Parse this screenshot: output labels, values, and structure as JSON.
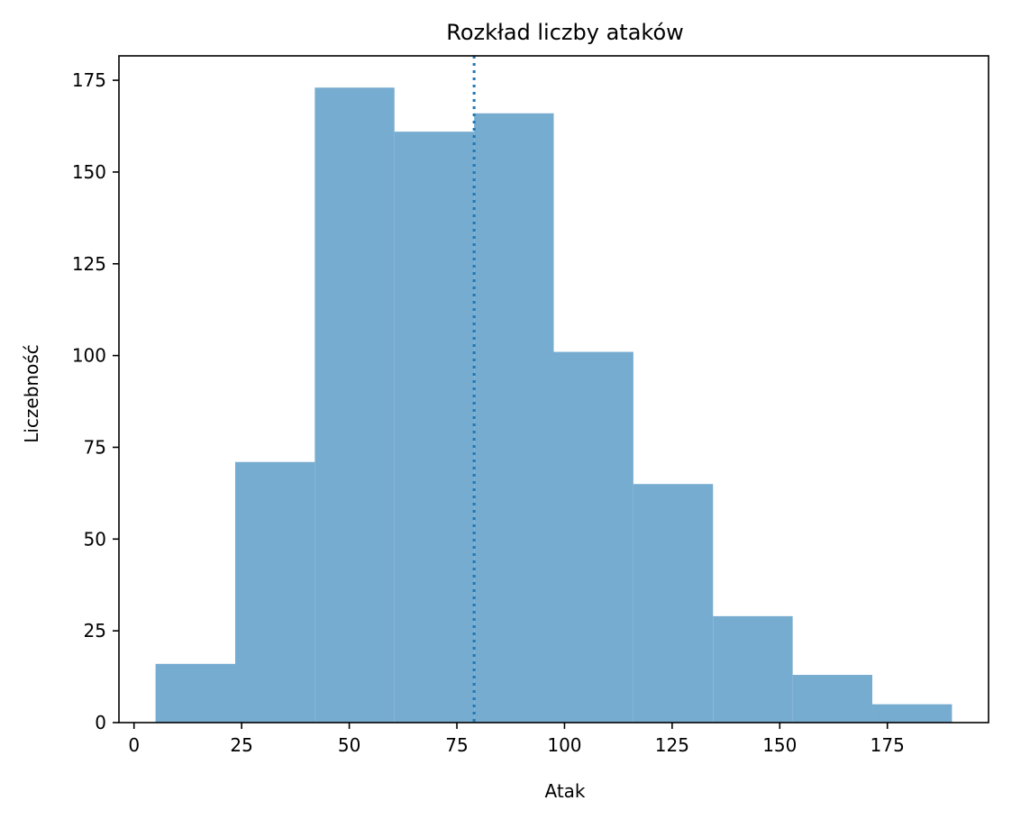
{
  "chart_data": {
    "type": "bar",
    "title": "Rozkład liczby ataków",
    "xlabel": "Atak",
    "ylabel": "Liczebność",
    "bin_edges": [
      5,
      23.5,
      42,
      60.5,
      79,
      97.5,
      116,
      134.5,
      153,
      171.5,
      190
    ],
    "values": [
      16,
      71,
      173,
      161,
      166,
      101,
      65,
      29,
      13,
      5
    ],
    "xlim": [
      -3.5,
      198.5
    ],
    "ylim": [
      0,
      181.65
    ],
    "xticks": [
      0,
      25,
      50,
      75,
      100,
      125,
      150,
      175
    ],
    "yticks": [
      0,
      25,
      50,
      75,
      100,
      125,
      150,
      175
    ],
    "vline": {
      "x": 79,
      "style": "dotted"
    },
    "grid": false,
    "colors": {
      "bar": "#77acd1",
      "vline": "#1f77b4",
      "axes": "#000000"
    }
  }
}
